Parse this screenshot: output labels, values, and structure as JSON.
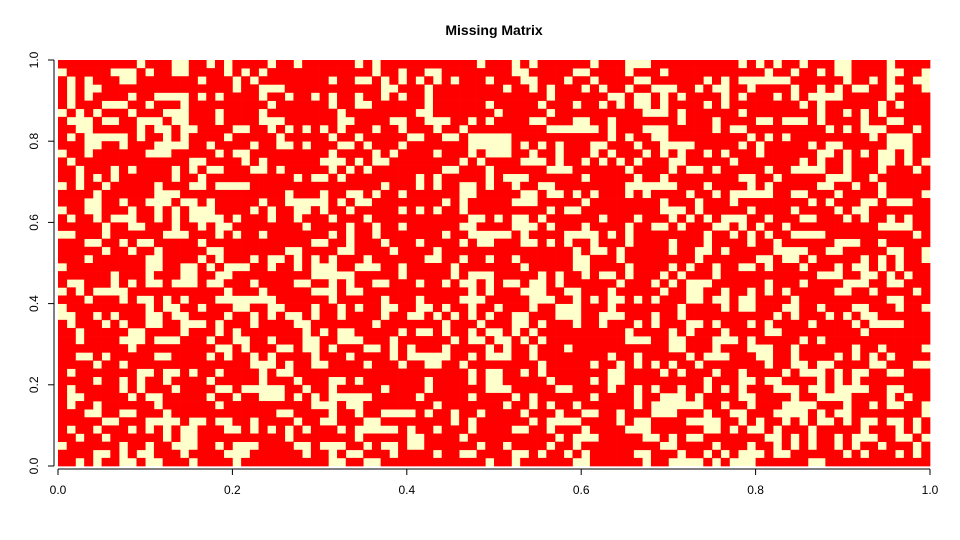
{
  "chart_data": {
    "type": "heatmap",
    "title": "Missing Matrix",
    "xlabel": "",
    "ylabel": "",
    "xlim": [
      0,
      1
    ],
    "ylim": [
      0,
      1
    ],
    "x_ticks": [
      "0.0",
      "0.2",
      "0.4",
      "0.6",
      "0.8",
      "1.0"
    ],
    "y_ticks": [
      "0.0",
      "0.2",
      "0.4",
      "0.6",
      "0.8",
      "1.0"
    ],
    "grid": false,
    "legend": "none",
    "colors": {
      "value_1": "#FF0000",
      "value_0": "#FFFFCC"
    },
    "n_columns": 100,
    "n_rows": 50,
    "fraction_value_1": 0.68,
    "random_seed": 20240607
  }
}
